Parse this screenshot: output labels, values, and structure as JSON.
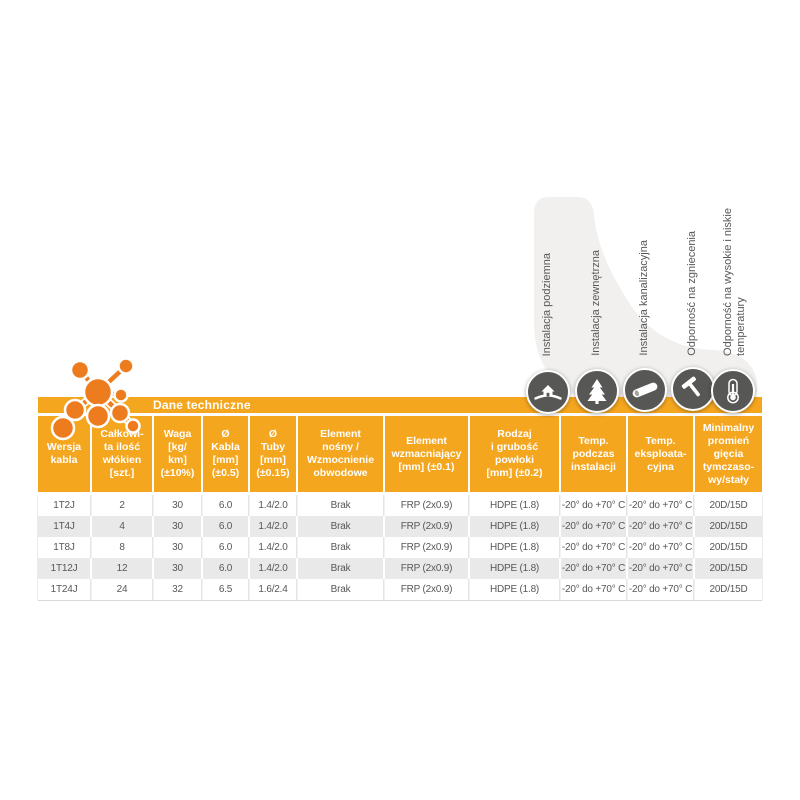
{
  "table": {
    "title": "Dane techniczne",
    "headers": [
      "Wersja\nkabla",
      "Całkowi-\nta ilość\nwłókien\n[szt.]",
      "Waga\n[kg/\nkm]\n(±10%)",
      "Ø\nKabla\n[mm]\n(±0.5)",
      "Ø\nTuby\n[mm]\n(±0.15)",
      "Element\nnośny /\nWzmocnienie\nobwodowe",
      "Element\nwzmacniający\n[mm] (±0.1)",
      "Rodzaj\ni grubość\npowłoki\n[mm] (±0.2)",
      "Temp.\npodczas\ninstalacji",
      "Temp.\neksploata-\ncyjna",
      "Minimalny\npromień\ngięcia\ntymczaso-\nwy/stały"
    ],
    "rows": [
      [
        "1T2J",
        "2",
        "30",
        "6.0",
        "1.4/2.0",
        "Brak",
        "FRP (2x0.9)",
        "HDPE (1.8)",
        "-20° do +70° C",
        "-20° do +70° C",
        "20D/15D"
      ],
      [
        "1T4J",
        "4",
        "30",
        "6.0",
        "1.4/2.0",
        "Brak",
        "FRP (2x0.9)",
        "HDPE (1.8)",
        "-20° do +70° C",
        "-20° do +70° C",
        "20D/15D"
      ],
      [
        "1T8J",
        "8",
        "30",
        "6.0",
        "1.4/2.0",
        "Brak",
        "FRP (2x0.9)",
        "HDPE (1.8)",
        "-20° do +70° C",
        "-20° do +70° C",
        "20D/15D"
      ],
      [
        "1T12J",
        "12",
        "30",
        "6.0",
        "1.4/2.0",
        "Brak",
        "FRP (2x0.9)",
        "HDPE (1.8)",
        "-20° do +70° C",
        "-20° do +70° C",
        "20D/15D"
      ],
      [
        "1T24J",
        "24",
        "32",
        "6.5",
        "1.6/2.4",
        "Brak",
        "FRP (2x0.9)",
        "HDPE (1.8)",
        "-20° do +70° C",
        "-20° do +70° C",
        "20D/15D"
      ]
    ]
  },
  "features": [
    {
      "label": "Instalacja podziemna",
      "icon": "house-underground-icon"
    },
    {
      "label": "Instalacja zewnętrzna",
      "icon": "pine-tree-icon"
    },
    {
      "label": "Instalacja kanalizacyjna",
      "icon": "duct-pipe-icon"
    },
    {
      "label": "Odporność na zgniecenia",
      "icon": "hammer-icon"
    },
    {
      "label": "Odporność na wysokie i niskie\ntemperatury",
      "icon": "thermometer-icon"
    }
  ],
  "colors": {
    "accent_orange": "#F5A61F",
    "logo_orange": "#ED7C1F",
    "icon_circle_gray": "#575756",
    "row_alt_gray": "#E9E9E9",
    "blob_gray": "#F1F0EE",
    "text_gray": "#575756"
  }
}
